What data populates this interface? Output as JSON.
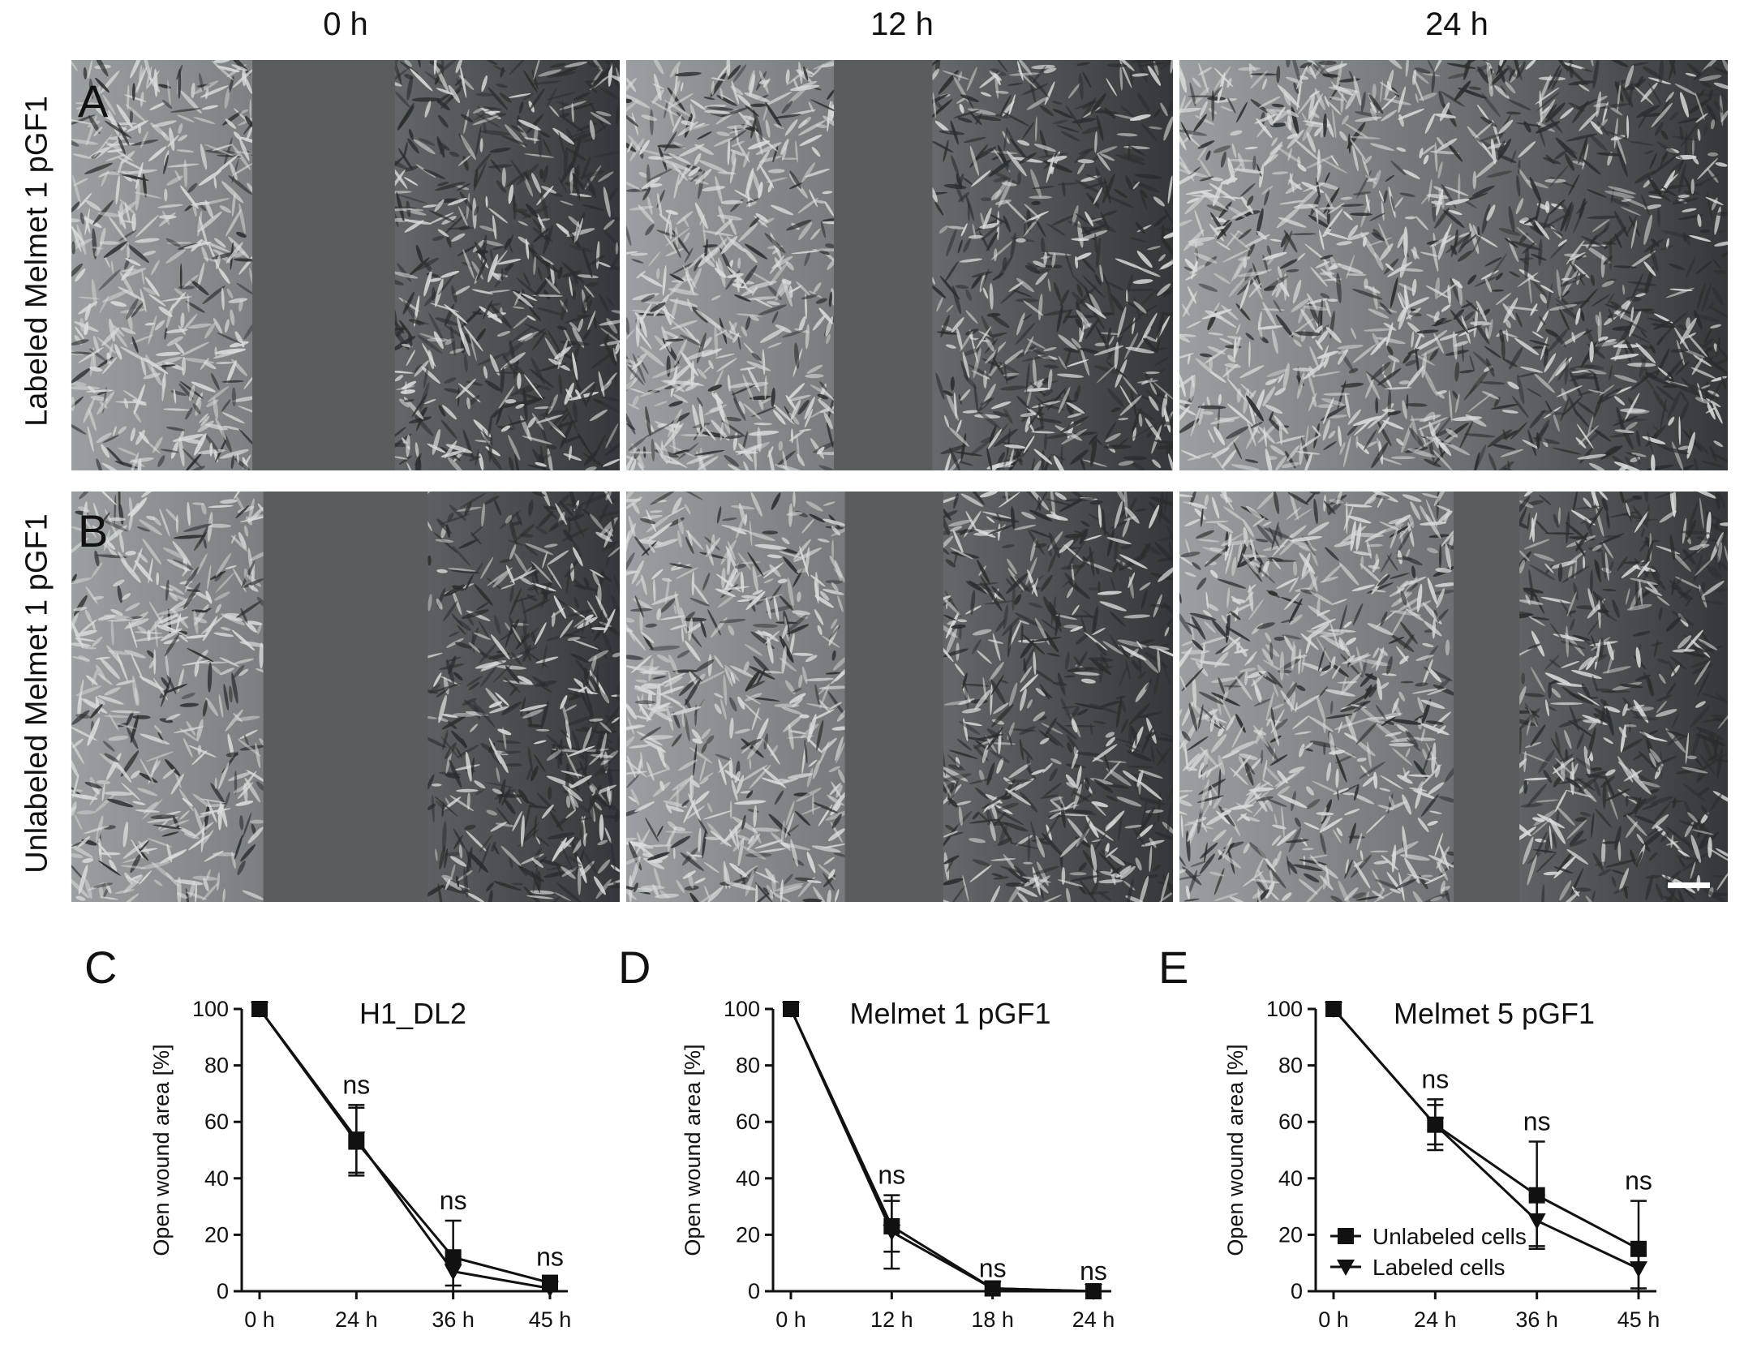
{
  "figure": {
    "columns": [
      "0 h",
      "12 h",
      "24 h"
    ],
    "rows": [
      {
        "letter": "A",
        "label": "Labeled Melmet 1 pGF1"
      },
      {
        "letter": "B",
        "label": "Unlabeled Melmet 1 pGF1"
      }
    ],
    "colors": {
      "line": "#111111",
      "background": "#ffffff",
      "cells_light": "#d8dcdc",
      "cells_dark": "#2a2d2f",
      "gap": "#5a5d5e"
    }
  },
  "chart_data": [
    {
      "letter": "C",
      "type": "line",
      "title": "H1_DL2",
      "ylabel": "Open wound area [%]",
      "xlabel": "",
      "categories": [
        "0 h",
        "24 h",
        "36 h",
        "45 h"
      ],
      "ylim": [
        0,
        100
      ],
      "yticks": [
        0,
        20,
        40,
        60,
        80,
        100
      ],
      "annotations": [
        "",
        "ns",
        "ns",
        "ns"
      ],
      "legend": false,
      "series": [
        {
          "name": "Unlabeled cells",
          "marker": "square",
          "values": [
            100,
            53,
            12,
            3
          ],
          "err": [
            0,
            12,
            13,
            2
          ]
        },
        {
          "name": "Labeled cells",
          "marker": "triangle",
          "values": [
            100,
            54,
            7,
            1
          ],
          "err": [
            0,
            12,
            5,
            1
          ]
        }
      ]
    },
    {
      "letter": "D",
      "type": "line",
      "title": "Melmet 1 pGF1",
      "ylabel": "Open wound area [%]",
      "xlabel": "",
      "categories": [
        "0 h",
        "12 h",
        "18 h",
        "24 h"
      ],
      "ylim": [
        0,
        100
      ],
      "yticks": [
        0,
        20,
        40,
        60,
        80,
        100
      ],
      "annotations": [
        "",
        "ns",
        "ns",
        "ns"
      ],
      "legend": false,
      "series": [
        {
          "name": "Unlabeled cells",
          "marker": "square",
          "values": [
            100,
            23,
            1,
            0
          ],
          "err": [
            0,
            9,
            0,
            0
          ]
        },
        {
          "name": "Labeled cells",
          "marker": "triangle",
          "values": [
            100,
            21,
            1,
            0
          ],
          "err": [
            0,
            13,
            0,
            0
          ]
        }
      ]
    },
    {
      "letter": "E",
      "type": "line",
      "title": "Melmet 5 pGF1",
      "ylabel": "Open wound area [%]",
      "xlabel": "",
      "categories": [
        "0 h",
        "24 h",
        "36 h",
        "45 h"
      ],
      "ylim": [
        0,
        100
      ],
      "yticks": [
        0,
        20,
        40,
        60,
        80,
        100
      ],
      "annotations": [
        "",
        "ns",
        "ns",
        "ns"
      ],
      "legend": true,
      "legend_position": "bottom-left",
      "series": [
        {
          "name": "Unlabeled cells",
          "marker": "square",
          "values": [
            100,
            59,
            34,
            15
          ],
          "err": [
            0,
            9,
            19,
            17
          ]
        },
        {
          "name": "Labeled cells",
          "marker": "triangle",
          "values": [
            100,
            59,
            25,
            8
          ],
          "err": [
            0,
            7,
            9,
            7
          ]
        }
      ]
    }
  ]
}
